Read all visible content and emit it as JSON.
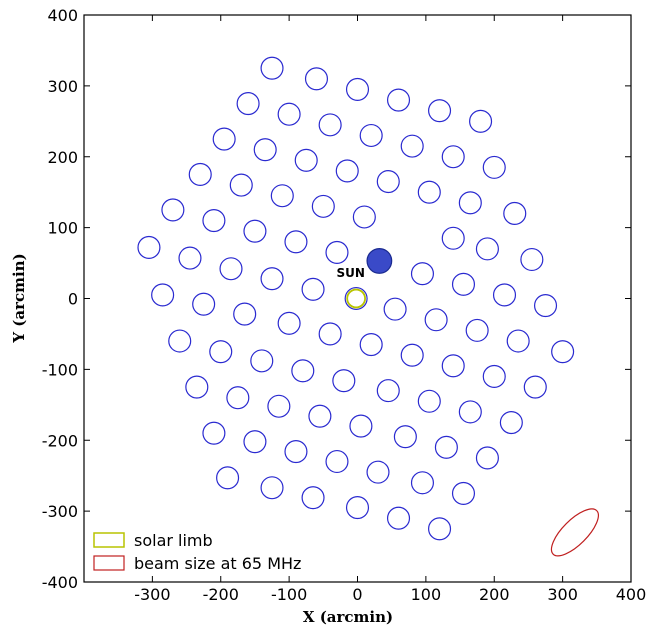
{
  "chart_data": {
    "type": "scatter",
    "xlabel": "X (arcmin)",
    "ylabel": "Y (arcmin)",
    "xlim": [
      -400,
      400
    ],
    "ylim": [
      -400,
      400
    ],
    "xticks": [
      "-300",
      "-200",
      "-100",
      "0",
      "100",
      "200",
      "300",
      "400"
    ],
    "yticks": [
      "400",
      "300",
      "200",
      "100",
      "0",
      "-100",
      "-200",
      "-300",
      "-400"
    ],
    "grid": false,
    "legend_position": "bottom-left",
    "beam_radius": 16,
    "beam_color": "#2a2ad0",
    "beams": [
      [
        -125,
        325
      ],
      [
        -60,
        310
      ],
      [
        0,
        295
      ],
      [
        60,
        280
      ],
      [
        120,
        265
      ],
      [
        180,
        250
      ],
      [
        -160,
        275
      ],
      [
        -100,
        260
      ],
      [
        -40,
        245
      ],
      [
        20,
        230
      ],
      [
        80,
        215
      ],
      [
        140,
        200
      ],
      [
        200,
        185
      ],
      [
        -195,
        225
      ],
      [
        -135,
        210
      ],
      [
        -75,
        195
      ],
      [
        -15,
        180
      ],
      [
        45,
        165
      ],
      [
        105,
        150
      ],
      [
        165,
        135
      ],
      [
        230,
        120
      ],
      [
        -230,
        175
      ],
      [
        -170,
        160
      ],
      [
        -110,
        145
      ],
      [
        -50,
        130
      ],
      [
        10,
        115
      ],
      [
        140,
        85
      ],
      [
        190,
        70
      ],
      [
        255,
        55
      ],
      [
        -270,
        125
      ],
      [
        -210,
        110
      ],
      [
        -150,
        95
      ],
      [
        -90,
        80
      ],
      [
        -30,
        65
      ],
      [
        95,
        35
      ],
      [
        155,
        20
      ],
      [
        215,
        5
      ],
      [
        275,
        -10
      ],
      [
        -305,
        72
      ],
      [
        -245,
        57
      ],
      [
        -185,
        42
      ],
      [
        -125,
        28
      ],
      [
        -65,
        13
      ],
      [
        55,
        -15
      ],
      [
        115,
        -30
      ],
      [
        175,
        -45
      ],
      [
        235,
        -60
      ],
      [
        300,
        -75
      ],
      [
        -285,
        5
      ],
      [
        -225,
        -8
      ],
      [
        -165,
        -22
      ],
      [
        -100,
        -35
      ],
      [
        -40,
        -50
      ],
      [
        20,
        -65
      ],
      [
        80,
        -80
      ],
      [
        140,
        -95
      ],
      [
        200,
        -110
      ],
      [
        260,
        -125
      ],
      [
        -260,
        -60
      ],
      [
        -200,
        -75
      ],
      [
        -140,
        -88
      ],
      [
        -80,
        -102
      ],
      [
        -20,
        -116
      ],
      [
        45,
        -130
      ],
      [
        105,
        -145
      ],
      [
        165,
        -160
      ],
      [
        225,
        -175
      ],
      [
        -235,
        -125
      ],
      [
        -175,
        -140
      ],
      [
        -115,
        -152
      ],
      [
        -55,
        -166
      ],
      [
        5,
        -180
      ],
      [
        70,
        -195
      ],
      [
        130,
        -210
      ],
      [
        190,
        -225
      ],
      [
        -210,
        -190
      ],
      [
        -150,
        -202
      ],
      [
        -90,
        -216
      ],
      [
        -30,
        -230
      ],
      [
        30,
        -245
      ],
      [
        95,
        -260
      ],
      [
        155,
        -275
      ],
      [
        -190,
        -253
      ],
      [
        -125,
        -267
      ],
      [
        -65,
        -281
      ],
      [
        0,
        -295
      ],
      [
        60,
        -310
      ],
      [
        120,
        -325
      ]
    ],
    "highlighted_beam": {
      "x": 32,
      "y": 53,
      "radius": 18,
      "color": "#3a4ac8"
    },
    "solar_limb": {
      "x": -2,
      "y": 0,
      "radius": 16,
      "color": "#b8c400"
    },
    "sun_annotation": {
      "text": "SUN",
      "x": -10,
      "y": 30
    },
    "beam_ellipse": {
      "x": 318,
      "y": -330,
      "rx": 45,
      "ry": 18,
      "angle_deg": -45,
      "color": "#c02020"
    },
    "legend": [
      {
        "label": "solar limb",
        "color": "#b8c400"
      },
      {
        "label": "beam size at 65 MHz",
        "color": "#c02020"
      }
    ]
  }
}
